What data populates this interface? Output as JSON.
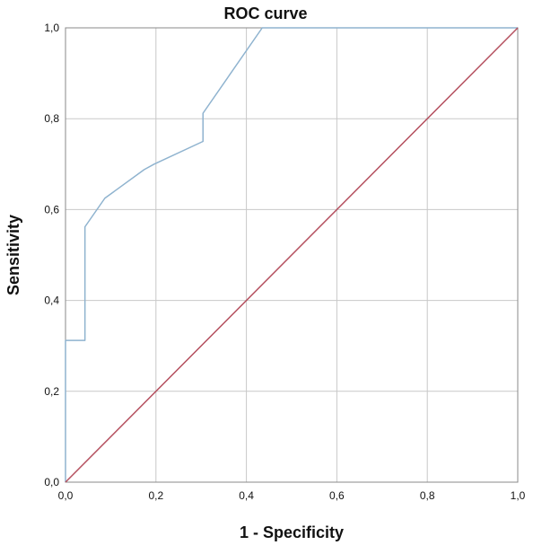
{
  "chart_data": {
    "type": "line",
    "title": "ROC curve",
    "xlabel": "1 - Specificity",
    "ylabel": "Sensitivity",
    "xlim": [
      0,
      1
    ],
    "ylim": [
      0,
      1
    ],
    "grid": true,
    "x_ticks": [
      "0,0",
      "0,2",
      "0,4",
      "0,6",
      "0,8",
      "1,0"
    ],
    "y_ticks": [
      "0,0",
      "0,2",
      "0,4",
      "0,6",
      "0,8",
      "1,0"
    ],
    "series": [
      {
        "color": "#8fb3cf",
        "x": [
          0.0,
          0.0,
          0.043,
          0.043,
          0.087,
          0.174,
          0.196,
          0.304,
          0.304,
          0.435,
          1.0
        ],
        "y": [
          0.0,
          0.312,
          0.312,
          0.562,
          0.625,
          0.688,
          0.7,
          0.75,
          0.812,
          1.0,
          1.0
        ]
      },
      {
        "color": "#b5505f",
        "x": [
          0.0,
          1.0
        ],
        "y": [
          0.0,
          1.0
        ]
      }
    ]
  }
}
